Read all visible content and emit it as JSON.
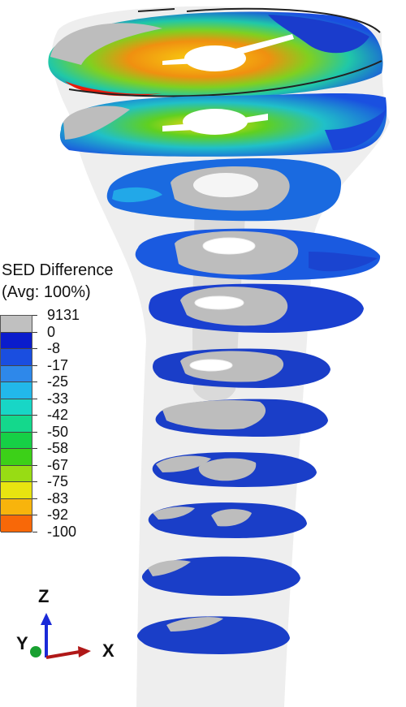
{
  "legend": {
    "title_line1": "SED Difference",
    "title_line2": "(Avg: 100%)",
    "entries": [
      {
        "label": "9131",
        "color": "#c0c0c0"
      },
      {
        "label": "0",
        "color": "#0a1ccc"
      },
      {
        "label": "-8",
        "color": "#1a4ee0"
      },
      {
        "label": "-17",
        "color": "#2e88ea"
      },
      {
        "label": "-25",
        "color": "#22b8ea"
      },
      {
        "label": "-33",
        "color": "#18d6c6"
      },
      {
        "label": "-42",
        "color": "#14d88c"
      },
      {
        "label": "-50",
        "color": "#16d046"
      },
      {
        "label": "-58",
        "color": "#3cd018"
      },
      {
        "label": "-67",
        "color": "#98dc14"
      },
      {
        "label": "-75",
        "color": "#e8e410"
      },
      {
        "label": "-83",
        "color": "#f8b40c"
      },
      {
        "label": "-92",
        "color": "#f86808"
      },
      {
        "label": "-100",
        "color": "#ea1a0a"
      }
    ]
  },
  "triad": {
    "z_label": "Z",
    "y_label": "Y",
    "x_label": "X",
    "z_color": "#1a2ad8",
    "x_color": "#b01818",
    "y_color": "#18a030"
  },
  "model": {
    "shell_color": "#e6e6e6",
    "bone_color": "#bdbdbd",
    "slice_count": 11
  }
}
